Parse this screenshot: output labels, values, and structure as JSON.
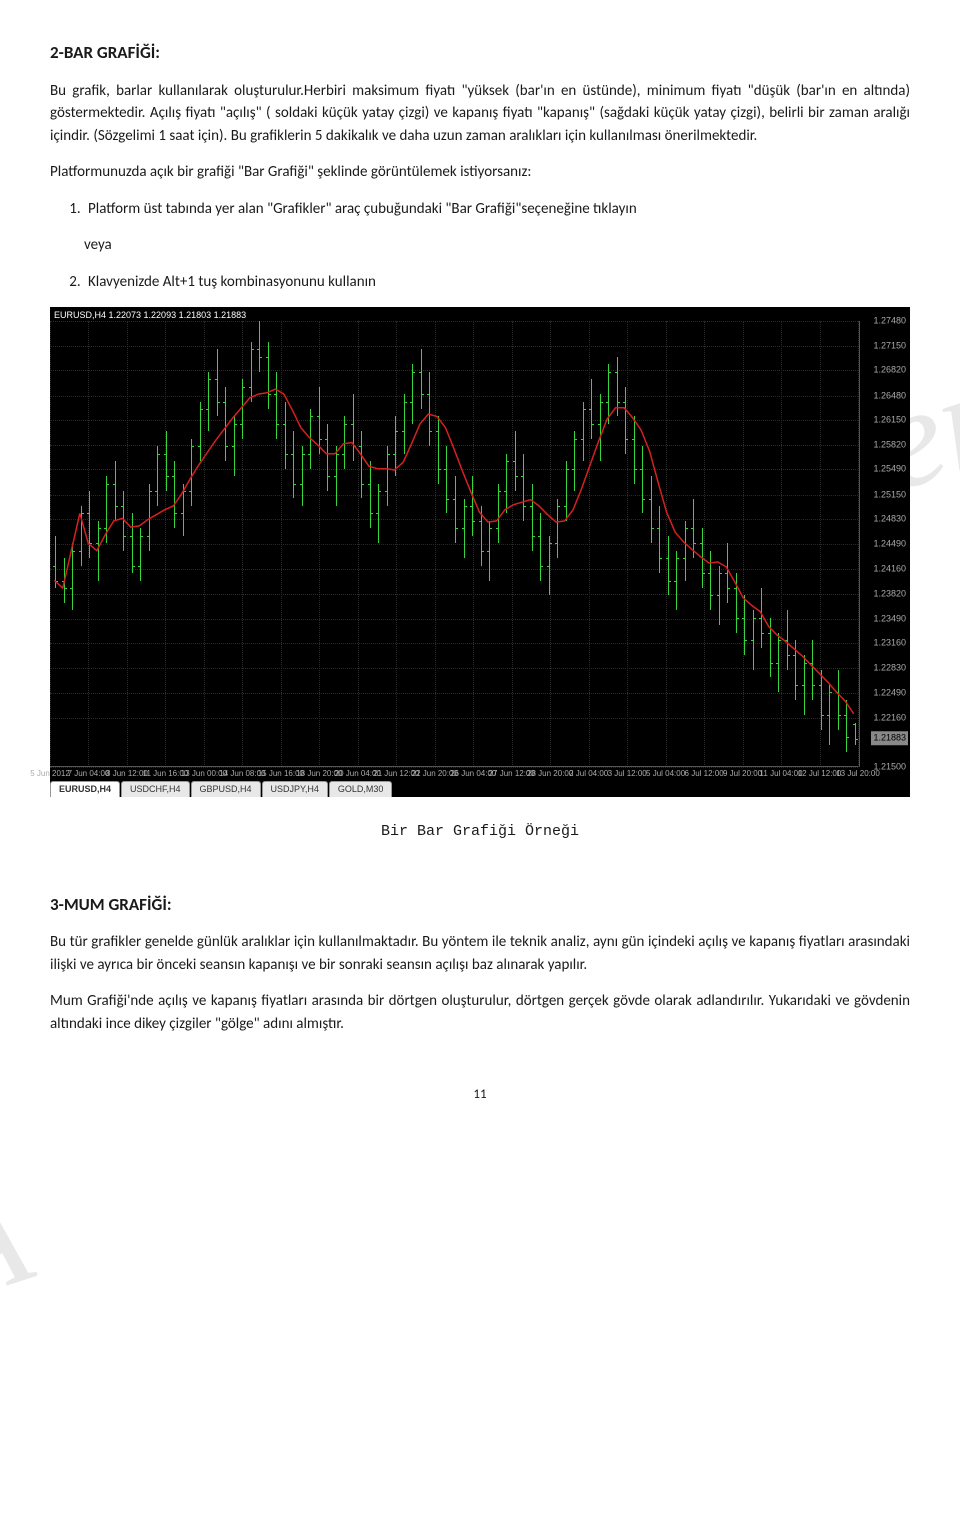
{
  "watermarks": {
    "wm1": "ğerler",
    "wm2": "A"
  },
  "section1": {
    "heading": "2-BAR GRAFİĞİ:",
    "p1": "Bu grafik, barlar kullanılarak oluşturulur.Herbiri maksimum fiyatı \"yüksek (bar'ın en üstünde), minimum fiyatı \"düşük (bar'ın en altında) göstermektedir. Açılış fiyatı \"açılış\" ( soldaki küçük yatay çizgi) ve kapanış fiyatı \"kapanış\" (sağdaki küçük yatay çizgi), belirli bir zaman aralığı içindir. (Sözgelimi 1 saat için). Bu grafiklerin 5 dakikalık ve daha uzun zaman aralıkları için kullanılması önerilmektedir.",
    "p2": "Platformunuzda açık bir grafiği \"Bar Grafiği\" şeklinde görüntülemek istiyorsanız:",
    "li1": "Platform üst tabında yer alan \"Grafikler\" araç çubuğundaki \"Bar Grafiği\"seçeneğine tıklayın",
    "veya": "veya",
    "li2": "Klavyenizde Alt+1 tuş kombinasyonunu kullanın"
  },
  "chart": {
    "header": "EURUSD,H4  1.22073 1.22093 1.21803 1.21883",
    "y_ticks": [
      "1.27480",
      "1.27150",
      "1.26820",
      "1.26480",
      "1.26150",
      "1.25820",
      "1.25490",
      "1.25150",
      "1.24830",
      "1.24490",
      "1.24160",
      "1.23820",
      "1.23490",
      "1.23160",
      "1.22830",
      "1.22490",
      "1.22160",
      "1.21500"
    ],
    "y_last": "1.21883",
    "up_color": "#36d63a",
    "down_color": "#36d63a",
    "ma_color": "#d62020",
    "grid_color": "#2a2a2a",
    "bg": "#000000",
    "x_ticks": [
      "5 Jun 2012",
      "7 Jun 04:00",
      "8 Jun 12:00",
      "11 Jun 16:00",
      "13 Jun 00:00",
      "14 Jun 08:00",
      "15 Jun 16:00",
      "18 Jun 20:00",
      "20 Jun 04:00",
      "21 Jun 12:00",
      "22 Jun 20:00",
      "26 Jun 04:00",
      "27 Jun 12:00",
      "28 Jun 20:00",
      "2 Jul 04:00",
      "3 Jul 12:00",
      "5 Jul 04:00",
      "6 Jul 12:00",
      "9 Jul 20:00",
      "11 Jul 04:00",
      "12 Jul 12:00",
      "13 Jul 20:00"
    ],
    "bars_o_h_l_c": [
      [
        1.242,
        1.246,
        1.239,
        1.24
      ],
      [
        1.24,
        1.243,
        1.237,
        1.239
      ],
      [
        1.239,
        1.245,
        1.236,
        1.244
      ],
      [
        1.244,
        1.25,
        1.242,
        1.249
      ],
      [
        1.249,
        1.252,
        1.243,
        1.245
      ],
      [
        1.245,
        1.248,
        1.24,
        1.247
      ],
      [
        1.247,
        1.254,
        1.245,
        1.253
      ],
      [
        1.253,
        1.256,
        1.248,
        1.25
      ],
      [
        1.25,
        1.252,
        1.244,
        1.246
      ],
      [
        1.246,
        1.249,
        1.241,
        1.242
      ],
      [
        1.242,
        1.247,
        1.24,
        1.246
      ],
      [
        1.246,
        1.253,
        1.244,
        1.252
      ],
      [
        1.252,
        1.258,
        1.25,
        1.257
      ],
      [
        1.257,
        1.26,
        1.252,
        1.254
      ],
      [
        1.254,
        1.256,
        1.247,
        1.249
      ],
      [
        1.249,
        1.253,
        1.246,
        1.252
      ],
      [
        1.252,
        1.259,
        1.25,
        1.258
      ],
      [
        1.258,
        1.264,
        1.256,
        1.263
      ],
      [
        1.263,
        1.268,
        1.26,
        1.267
      ],
      [
        1.267,
        1.271,
        1.262,
        1.264
      ],
      [
        1.264,
        1.266,
        1.256,
        1.258
      ],
      [
        1.258,
        1.262,
        1.254,
        1.261
      ],
      [
        1.261,
        1.267,
        1.259,
        1.266
      ],
      [
        1.266,
        1.272,
        1.264,
        1.271
      ],
      [
        1.271,
        1.2748,
        1.268,
        1.27
      ],
      [
        1.27,
        1.272,
        1.263,
        1.265
      ],
      [
        1.265,
        1.268,
        1.259,
        1.261
      ],
      [
        1.261,
        1.264,
        1.255,
        1.257
      ],
      [
        1.257,
        1.26,
        1.251,
        1.253
      ],
      [
        1.253,
        1.258,
        1.25,
        1.257
      ],
      [
        1.257,
        1.263,
        1.255,
        1.262
      ],
      [
        1.262,
        1.266,
        1.257,
        1.259
      ],
      [
        1.259,
        1.261,
        1.252,
        1.254
      ],
      [
        1.254,
        1.258,
        1.25,
        1.257
      ],
      [
        1.257,
        1.262,
        1.255,
        1.261
      ],
      [
        1.261,
        1.265,
        1.256,
        1.258
      ],
      [
        1.258,
        1.26,
        1.251,
        1.253
      ],
      [
        1.253,
        1.256,
        1.247,
        1.249
      ],
      [
        1.249,
        1.253,
        1.245,
        1.252
      ],
      [
        1.252,
        1.258,
        1.25,
        1.257
      ],
      [
        1.257,
        1.262,
        1.254,
        1.26
      ],
      [
        1.26,
        1.265,
        1.257,
        1.264
      ],
      [
        1.264,
        1.269,
        1.261,
        1.268
      ],
      [
        1.268,
        1.271,
        1.263,
        1.265
      ],
      [
        1.265,
        1.268,
        1.258,
        1.26
      ],
      [
        1.26,
        1.262,
        1.253,
        1.255
      ],
      [
        1.255,
        1.258,
        1.249,
        1.251
      ],
      [
        1.251,
        1.254,
        1.245,
        1.247
      ],
      [
        1.247,
        1.251,
        1.243,
        1.25
      ],
      [
        1.25,
        1.254,
        1.246,
        1.248
      ],
      [
        1.248,
        1.25,
        1.242,
        1.244
      ],
      [
        1.244,
        1.248,
        1.24,
        1.247
      ],
      [
        1.247,
        1.253,
        1.245,
        1.252
      ],
      [
        1.252,
        1.257,
        1.249,
        1.256
      ],
      [
        1.256,
        1.26,
        1.252,
        1.254
      ],
      [
        1.254,
        1.257,
        1.248,
        1.25
      ],
      [
        1.25,
        1.253,
        1.244,
        1.246
      ],
      [
        1.246,
        1.249,
        1.24,
        1.242
      ],
      [
        1.242,
        1.246,
        1.238,
        1.245
      ],
      [
        1.245,
        1.251,
        1.243,
        1.25
      ],
      [
        1.25,
        1.256,
        1.248,
        1.255
      ],
      [
        1.255,
        1.26,
        1.252,
        1.259
      ],
      [
        1.259,
        1.264,
        1.256,
        1.263
      ],
      [
        1.263,
        1.267,
        1.259,
        1.261
      ],
      [
        1.261,
        1.265,
        1.256,
        1.264
      ],
      [
        1.264,
        1.269,
        1.261,
        1.268
      ],
      [
        1.268,
        1.27,
        1.262,
        1.264
      ],
      [
        1.264,
        1.266,
        1.257,
        1.259
      ],
      [
        1.259,
        1.262,
        1.253,
        1.255
      ],
      [
        1.255,
        1.258,
        1.249,
        1.251
      ],
      [
        1.251,
        1.254,
        1.245,
        1.247
      ],
      [
        1.247,
        1.25,
        1.241,
        1.243
      ],
      [
        1.243,
        1.246,
        1.238,
        1.24
      ],
      [
        1.24,
        1.244,
        1.236,
        1.243
      ],
      [
        1.243,
        1.248,
        1.24,
        1.247
      ],
      [
        1.247,
        1.251,
        1.243,
        1.245
      ],
      [
        1.245,
        1.247,
        1.239,
        1.241
      ],
      [
        1.241,
        1.244,
        1.236,
        1.238
      ],
      [
        1.238,
        1.242,
        1.234,
        1.241
      ],
      [
        1.241,
        1.245,
        1.237,
        1.239
      ],
      [
        1.239,
        1.241,
        1.233,
        1.235
      ],
      [
        1.235,
        1.238,
        1.23,
        1.232
      ],
      [
        1.232,
        1.236,
        1.228,
        1.235
      ],
      [
        1.235,
        1.239,
        1.231,
        1.233
      ],
      [
        1.233,
        1.235,
        1.227,
        1.229
      ],
      [
        1.229,
        1.233,
        1.225,
        1.232
      ],
      [
        1.232,
        1.236,
        1.228,
        1.23
      ],
      [
        1.23,
        1.232,
        1.224,
        1.226
      ],
      [
        1.226,
        1.23,
        1.222,
        1.229
      ],
      [
        1.229,
        1.232,
        1.224,
        1.226
      ],
      [
        1.226,
        1.228,
        1.22,
        1.222
      ],
      [
        1.222,
        1.226,
        1.218,
        1.225
      ],
      [
        1.225,
        1.228,
        1.22,
        1.222
      ],
      [
        1.222,
        1.224,
        1.217,
        1.219
      ],
      [
        1.2207,
        1.2209,
        1.218,
        1.2188
      ]
    ],
    "y_min": 1.215,
    "y_max": 1.2748,
    "tabs": [
      "EURUSD,H4",
      "USDCHF,H4",
      "GBPUSD,H4",
      "USDJPY,H4",
      "GOLD,M30"
    ],
    "active_tab": 0
  },
  "caption": "Bir Bar Grafiği Örneği",
  "section2": {
    "heading": "3-MUM GRAFİĞİ:",
    "p1": "Bu tür grafikler genelde günlük aralıklar için kullanılmaktadır. Bu yöntem ile teknik analiz, aynı gün içindeki açılış ve kapanış fiyatları arasındaki ilişki ve ayrıca bir önceki seansın kapanışı ve bir sonraki seansın açılışı baz alınarak yapılır.",
    "p2": "Mum Grafiği'nde açılış ve kapanış fiyatları arasında bir dörtgen oluşturulur, dörtgen gerçek gövde olarak adlandırılır. Yukarıdaki ve gövdenin altındaki ince dikey çizgiler \"gölge\" adını almıştır."
  },
  "page_number": "11"
}
